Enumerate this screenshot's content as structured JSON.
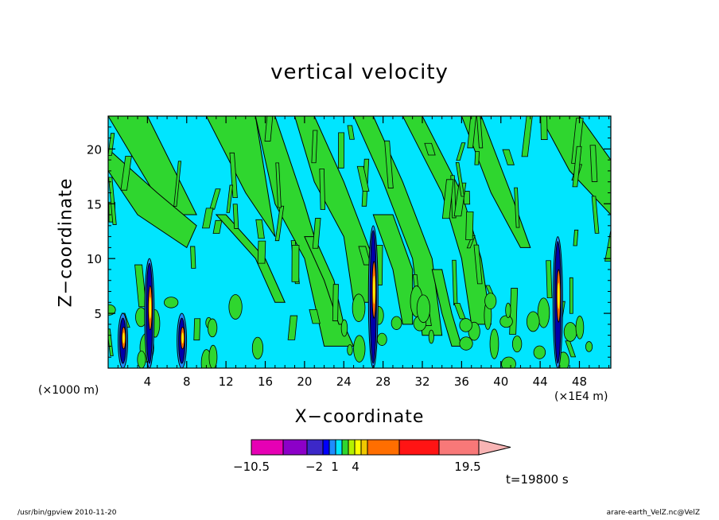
{
  "chart_data": {
    "type": "heatmap",
    "title": "vertical velocity",
    "xlabel": "X−coordinate",
    "ylabel": "Z−coordinate",
    "x_unit_left": "(×1000 m)",
    "x_unit_right": "(×1E4 m)",
    "x_ticks": [
      "4",
      "8",
      "12",
      "16",
      "20",
      "24",
      "28",
      "32",
      "36",
      "40",
      "44",
      "48"
    ],
    "x_tick_values": [
      4,
      8,
      12,
      16,
      20,
      24,
      28,
      32,
      36,
      40,
      44,
      48
    ],
    "y_ticks": [
      "5",
      "10",
      "15",
      "20"
    ],
    "y_tick_values": [
      5,
      10,
      15,
      20
    ],
    "xlim": [
      0,
      51.2
    ],
    "ylim": [
      0,
      23
    ],
    "regions": {
      "background_color": "#00e5ff",
      "positive_color": "#2fd62f",
      "updraft_columns_x": [
        1.5,
        4.2,
        7.5,
        27.0,
        45.8
      ],
      "strong_updraft_top_z": [
        5,
        10,
        5,
        13,
        12
      ]
    },
    "colorbar": {
      "levels_colors": [
        "#e600b4",
        "#8c00c8",
        "#3c28c8",
        "#0000ff",
        "#1e8cff",
        "#00e5ff",
        "#2fd62f",
        "#b4f000",
        "#ffff00",
        "#f0c800",
        "#ff6e00",
        "#ff1414",
        "#f87878",
        "#f8b4b4"
      ],
      "tick_labels": [
        "−10.5",
        "−2",
        "1",
        "4",
        "19.5"
      ],
      "tick_values": [
        -10.5,
        -2,
        1,
        4,
        19.5
      ]
    },
    "time_label": "t=19800 s"
  },
  "footer": {
    "left": "/usr/bin/gpview   2010-11-20",
    "right": "arare-earth_VelZ.nc@VelZ"
  }
}
